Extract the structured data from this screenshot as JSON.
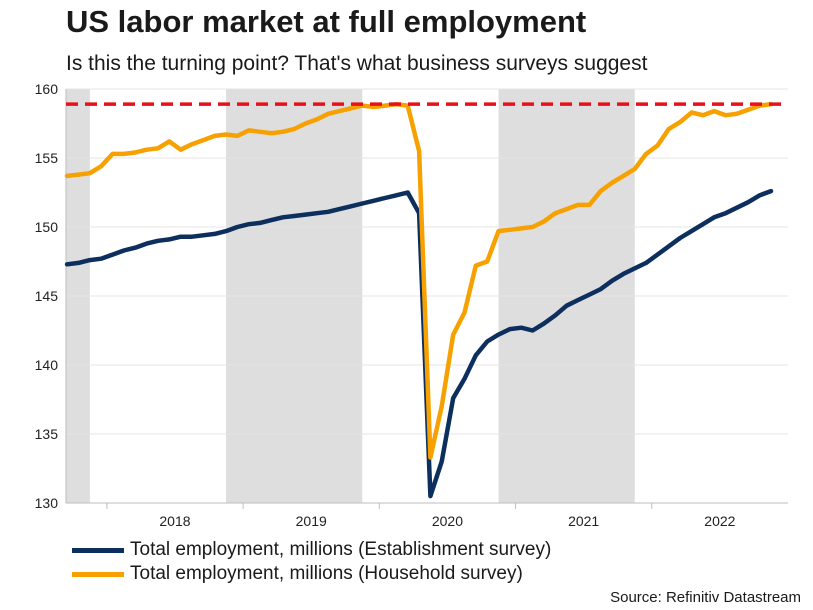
{
  "chart_data": {
    "type": "line",
    "title": "US labor market at full employment",
    "subtitle": "Is this the turning point? That's what business surveys suggest",
    "source": "Source: Refinitiv Datastream",
    "ylim": [
      130,
      160
    ],
    "xlim": [
      2017.2,
      2022.5
    ],
    "y_ticks": [
      130,
      135,
      140,
      145,
      150,
      155,
      160
    ],
    "x_tick_labels": [
      {
        "label": "2018",
        "x": 2018.0
      },
      {
        "label": "2019",
        "x": 2019.0
      },
      {
        "label": "2020",
        "x": 2020.0
      },
      {
        "label": "2021",
        "x": 2021.0
      },
      {
        "label": "2022",
        "x": 2022.0
      }
    ],
    "year_separators": [
      2017.5,
      2018.5,
      2019.5,
      2020.5,
      2021.5
    ],
    "shaded_periods": [
      [
        2017.2,
        2017.375
      ],
      [
        2018.375,
        2019.375
      ],
      [
        2020.375,
        2021.375
      ]
    ],
    "reference_line": {
      "value": 158.9,
      "color": "#e8101a",
      "style": "dashed"
    },
    "x": [
      2017.208,
      2017.292,
      2017.375,
      2017.458,
      2017.542,
      2017.625,
      2017.708,
      2017.792,
      2017.875,
      2017.958,
      2018.042,
      2018.125,
      2018.208,
      2018.292,
      2018.375,
      2018.458,
      2018.542,
      2018.625,
      2018.708,
      2018.792,
      2018.875,
      2018.958,
      2019.042,
      2019.125,
      2019.208,
      2019.292,
      2019.375,
      2019.458,
      2019.542,
      2019.625,
      2019.708,
      2019.792,
      2019.875,
      2019.958,
      2020.042,
      2020.125,
      2020.208,
      2020.292,
      2020.375,
      2020.458,
      2020.542,
      2020.625,
      2020.708,
      2020.792,
      2020.875,
      2020.958,
      2021.042,
      2021.125,
      2021.208,
      2021.292,
      2021.375,
      2021.458,
      2021.542,
      2021.625,
      2021.708,
      2021.792,
      2021.875,
      2021.958,
      2022.042,
      2022.125,
      2022.208,
      2022.292,
      2022.375
    ],
    "series": [
      {
        "name": "Total employment, millions (Establishment survey)",
        "color": "#0d2f5e",
        "values": [
          147.3,
          147.4,
          147.6,
          147.7,
          148.0,
          148.3,
          148.5,
          148.8,
          149.0,
          149.1,
          149.3,
          149.3,
          149.4,
          149.5,
          149.7,
          150.0,
          150.2,
          150.3,
          150.5,
          150.7,
          150.8,
          150.9,
          151.0,
          151.1,
          151.3,
          151.5,
          151.7,
          151.9,
          152.1,
          152.3,
          152.5,
          151.0,
          130.5,
          133.0,
          137.6,
          139.0,
          140.7,
          141.7,
          142.2,
          142.6,
          142.7,
          142.5,
          143.0,
          143.6,
          144.3,
          144.7,
          145.1,
          145.5,
          146.1,
          146.6,
          147.0,
          147.4,
          148.0,
          148.6,
          149.2,
          149.7,
          150.2,
          150.7,
          151.0,
          151.4,
          151.8,
          152.3,
          152.6
        ]
      },
      {
        "name": "Total employment, millions (Household survey)",
        "color": "#f7a100",
        "values": [
          153.7,
          153.8,
          153.9,
          154.4,
          155.3,
          155.3,
          155.4,
          155.6,
          155.7,
          156.2,
          155.6,
          156.0,
          156.3,
          156.6,
          156.7,
          156.6,
          157.0,
          156.9,
          156.8,
          156.9,
          157.1,
          157.5,
          157.8,
          158.2,
          158.4,
          158.6,
          158.8,
          158.7,
          158.8,
          158.9,
          158.8,
          155.5,
          133.3,
          137.0,
          142.2,
          143.8,
          147.2,
          147.5,
          149.7,
          149.8,
          149.9,
          150.0,
          150.4,
          151.0,
          151.3,
          151.6,
          151.6,
          152.6,
          153.2,
          153.7,
          154.2,
          155.3,
          155.9,
          157.1,
          157.6,
          158.3,
          158.1,
          158.4,
          158.1,
          158.2,
          158.5,
          158.8,
          158.9
        ]
      }
    ]
  }
}
